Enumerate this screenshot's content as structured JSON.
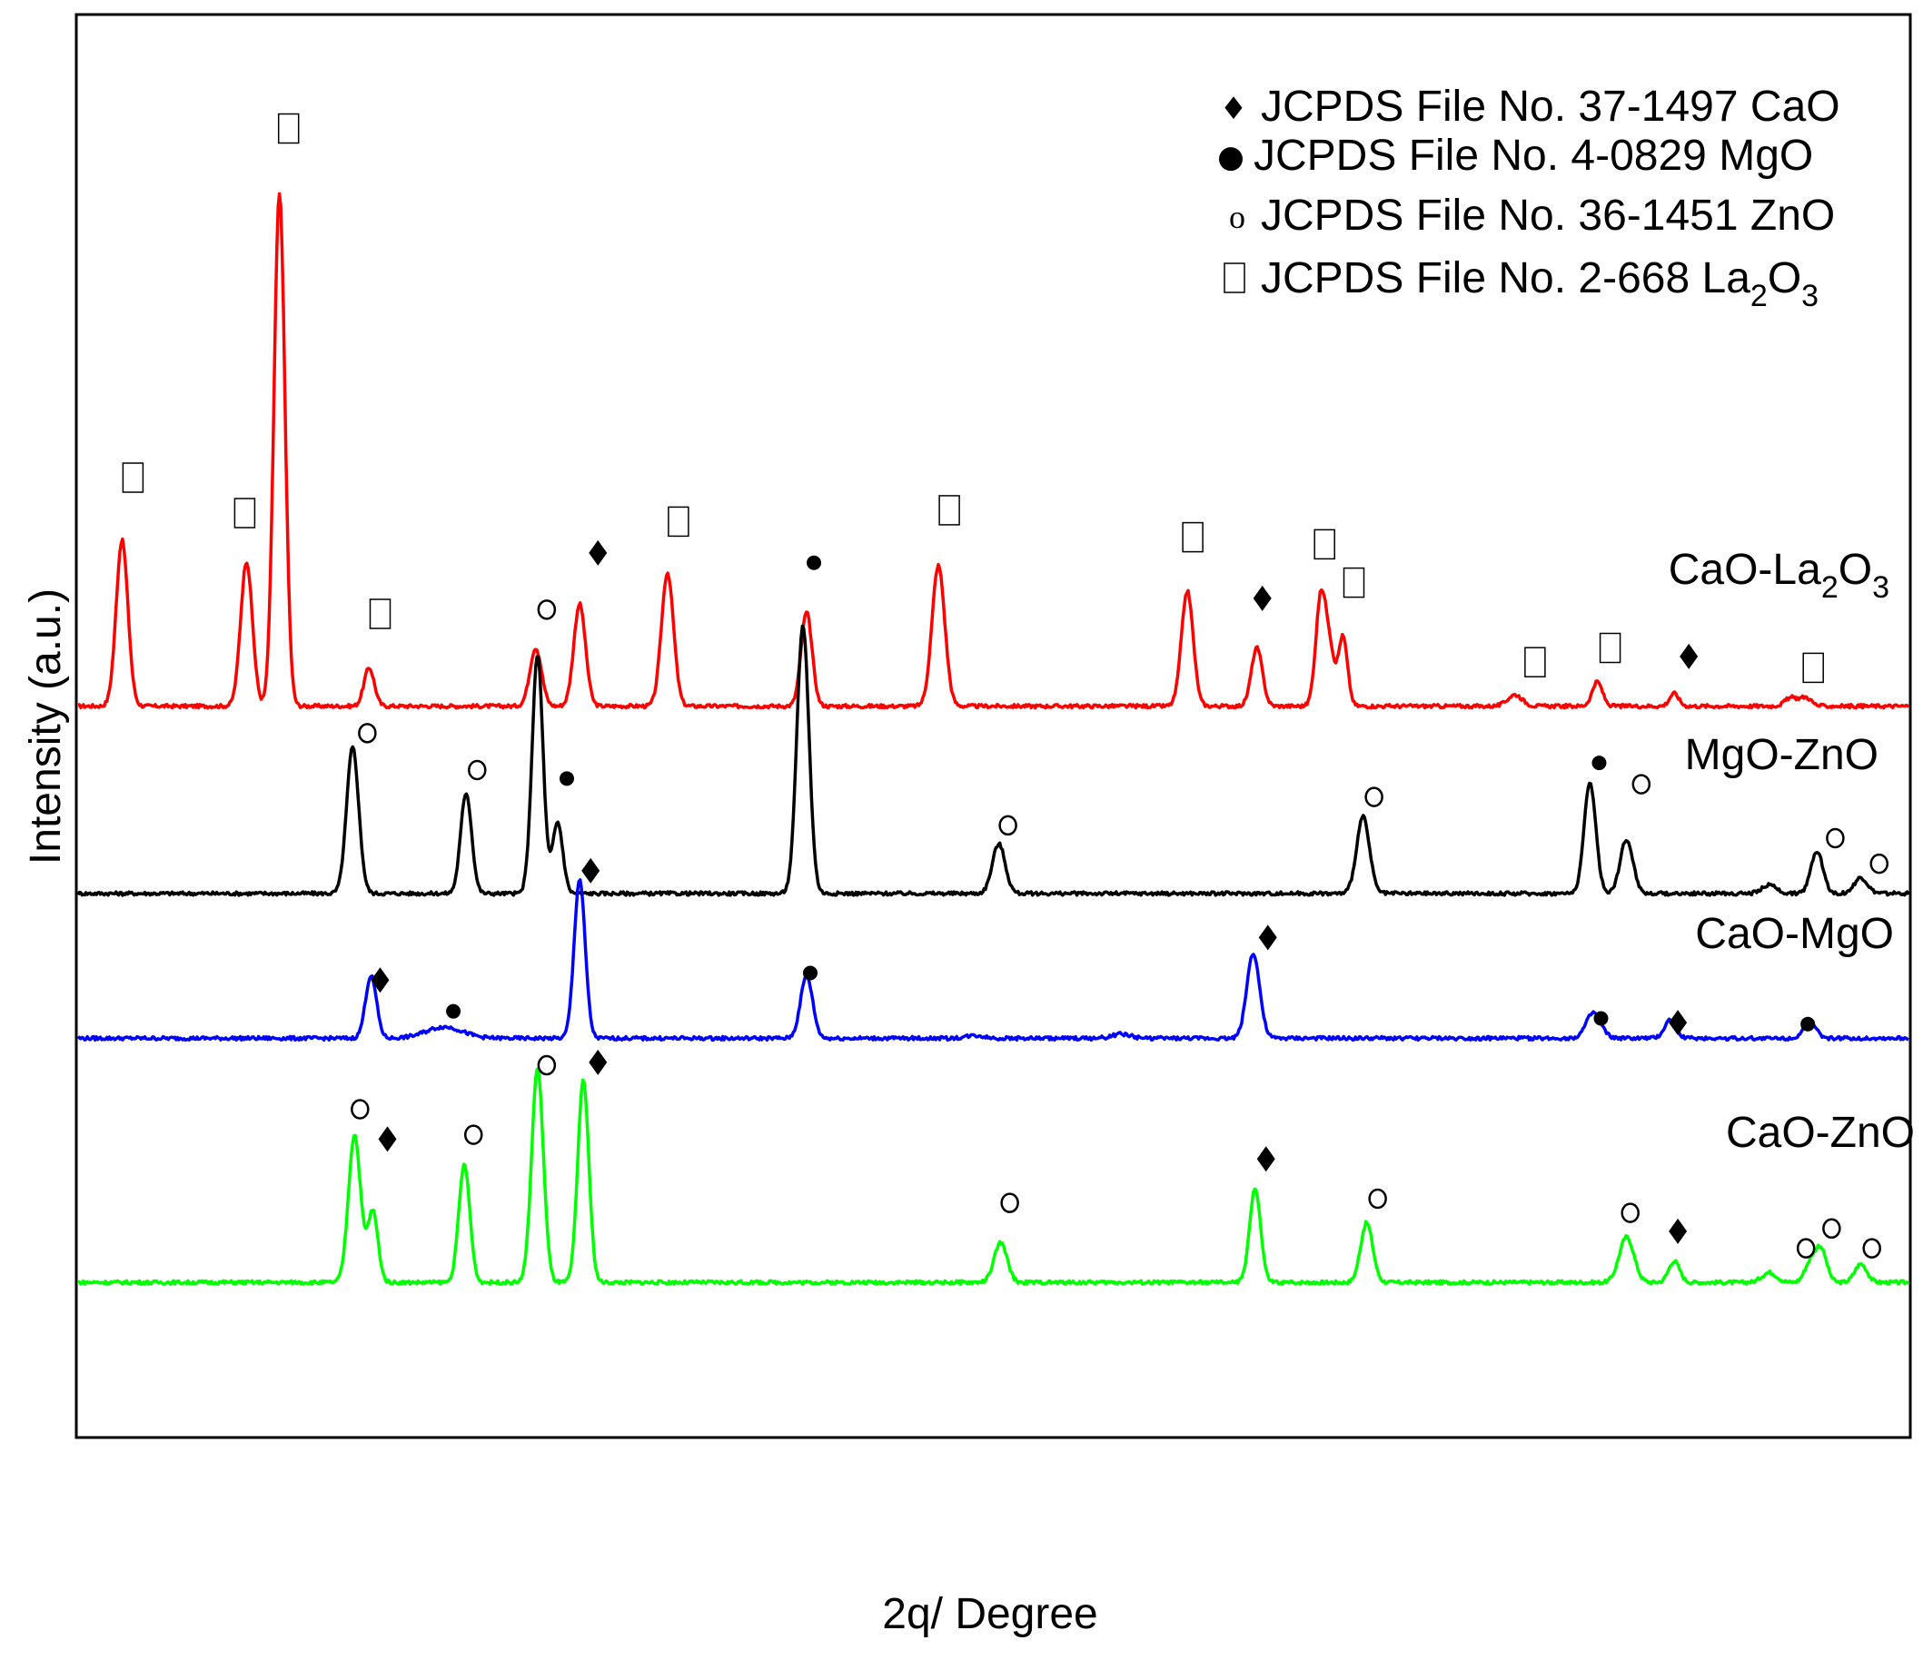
{
  "chart_data": {
    "type": "line",
    "title": "",
    "xlabel": "2q/ Degree",
    "ylabel": "Intensity (a.u.)",
    "xlim": [
      0,
      100
    ],
    "ylim": [
      0,
      100
    ],
    "grid": false,
    "axis_ticks": false,
    "legend_position": "top-right",
    "legend": [
      {
        "symbol": "diamond",
        "name": "JCPDS File No. 37-1497 CaO"
      },
      {
        "symbol": "dot",
        "name": "JCPDS File No. 4-0829 MgO"
      },
      {
        "symbol": "open-circle",
        "name": "JCPDS File No. 36-1451 ZnO"
      },
      {
        "symbol": "square",
        "name": "JCPDS File No. 2-668 La",
        "sub1": "2",
        "mid": "O",
        "sub2": "3"
      }
    ],
    "series": [
      {
        "name": "CaO-La2O3",
        "label_main": "CaO-La",
        "label_sub1": "2",
        "label_mid": "O",
        "label_sub2": "3",
        "color": "#ff0000",
        "baseline": 51.4,
        "peaks": [
          {
            "x": 2.4,
            "h": 11.7,
            "w": 0.32
          },
          {
            "x": 9.2,
            "h": 10.2,
            "w": 0.32
          },
          {
            "x": 11.0,
            "h": 36.1,
            "w": 0.3
          },
          {
            "x": 15.9,
            "h": 2.7,
            "w": 0.28
          },
          {
            "x": 25.0,
            "h": 4.1,
            "w": 0.32
          },
          {
            "x": 27.4,
            "h": 7.2,
            "w": 0.32
          },
          {
            "x": 32.2,
            "h": 9.4,
            "w": 0.33
          },
          {
            "x": 39.8,
            "h": 6.6,
            "w": 0.3
          },
          {
            "x": 47.0,
            "h": 9.9,
            "w": 0.35
          },
          {
            "x": 60.6,
            "h": 8.1,
            "w": 0.32
          },
          {
            "x": 64.4,
            "h": 4.1,
            "w": 0.3
          },
          {
            "x": 67.9,
            "h": 7.7,
            "w": 0.28
          },
          {
            "x": 68.4,
            "h": 3.4,
            "w": 0.25
          },
          {
            "x": 69.1,
            "h": 4.9,
            "w": 0.25
          },
          {
            "x": 78.5,
            "h": 0.8,
            "w": 0.4
          },
          {
            "x": 83.0,
            "h": 1.7,
            "w": 0.28
          },
          {
            "x": 87.2,
            "h": 0.9,
            "w": 0.25
          },
          {
            "x": 93.6,
            "h": 0.6,
            "w": 0.35
          },
          {
            "x": 94.4,
            "h": 0.6,
            "w": 0.3
          }
        ],
        "markers": [
          {
            "x": 3.0,
            "y": 67.5,
            "symbol": "square"
          },
          {
            "x": 9.1,
            "y": 65.0,
            "symbol": "square"
          },
          {
            "x": 11.5,
            "y": 92.1,
            "symbol": "square"
          },
          {
            "x": 16.5,
            "y": 57.9,
            "symbol": "square"
          },
          {
            "x": 25.6,
            "y": 58.2,
            "symbol": "open-circle"
          },
          {
            "x": 28.4,
            "y": 62.2,
            "symbol": "diamond"
          },
          {
            "x": 32.8,
            "y": 64.4,
            "symbol": "square"
          },
          {
            "x": 40.2,
            "y": 61.5,
            "symbol": "dot"
          },
          {
            "x": 47.6,
            "y": 65.2,
            "symbol": "square"
          },
          {
            "x": 60.9,
            "y": 63.3,
            "symbol": "square"
          },
          {
            "x": 64.7,
            "y": 59.0,
            "symbol": "diamond"
          },
          {
            "x": 68.1,
            "y": 62.8,
            "symbol": "square"
          },
          {
            "x": 69.7,
            "y": 60.1,
            "symbol": "square"
          },
          {
            "x": 79.6,
            "y": 54.5,
            "symbol": "square"
          },
          {
            "x": 83.7,
            "y": 55.5,
            "symbol": "square"
          },
          {
            "x": 88.0,
            "y": 54.9,
            "symbol": "diamond"
          },
          {
            "x": 94.8,
            "y": 54.1,
            "symbol": "square"
          }
        ]
      },
      {
        "name": "MgO-ZnO",
        "label_main": "MgO-ZnO",
        "color": "#000000",
        "baseline": 38.2,
        "peaks": [
          {
            "x": 15.0,
            "h": 10.3,
            "w": 0.33
          },
          {
            "x": 21.2,
            "h": 7.1,
            "w": 0.3
          },
          {
            "x": 25.1,
            "h": 16.8,
            "w": 0.3
          },
          {
            "x": 26.2,
            "h": 5.0,
            "w": 0.28
          },
          {
            "x": 39.6,
            "h": 18.9,
            "w": 0.33
          },
          {
            "x": 50.3,
            "h": 3.5,
            "w": 0.35
          },
          {
            "x": 70.2,
            "h": 5.4,
            "w": 0.35
          },
          {
            "x": 82.6,
            "h": 7.8,
            "w": 0.32
          },
          {
            "x": 84.6,
            "h": 3.8,
            "w": 0.35
          },
          {
            "x": 92.4,
            "h": 0.6,
            "w": 0.4
          },
          {
            "x": 95.0,
            "h": 3.0,
            "w": 0.33
          },
          {
            "x": 97.4,
            "h": 1.1,
            "w": 0.35
          }
        ],
        "markers": [
          {
            "x": 15.8,
            "y": 49.5,
            "symbol": "open-circle"
          },
          {
            "x": 21.8,
            "y": 46.9,
            "symbol": "open-circle"
          },
          {
            "x": 26.7,
            "y": 46.3,
            "symbol": "dot"
          },
          {
            "x": 50.8,
            "y": 43.0,
            "symbol": "open-circle"
          },
          {
            "x": 70.8,
            "y": 45.0,
            "symbol": "open-circle"
          },
          {
            "x": 83.1,
            "y": 47.4,
            "symbol": "dot"
          },
          {
            "x": 85.4,
            "y": 45.9,
            "symbol": "open-circle"
          },
          {
            "x": 96.0,
            "y": 42.1,
            "symbol": "open-circle"
          },
          {
            "x": 98.4,
            "y": 40.3,
            "symbol": "open-circle"
          }
        ]
      },
      {
        "name": "CaO-MgO",
        "label_main": "CaO-MgO",
        "color": "#0000ff",
        "baseline": 28.0,
        "peaks": [
          {
            "x": 16.0,
            "h": 4.4,
            "w": 0.3
          },
          {
            "x": 20.0,
            "h": 0.8,
            "w": 1.0
          },
          {
            "x": 27.4,
            "h": 11.2,
            "w": 0.3
          },
          {
            "x": 39.8,
            "h": 4.4,
            "w": 0.33
          },
          {
            "x": 49.0,
            "h": 0.2,
            "w": 0.5
          },
          {
            "x": 57.0,
            "h": 0.3,
            "w": 0.5
          },
          {
            "x": 64.2,
            "h": 6.0,
            "w": 0.35
          },
          {
            "x": 82.8,
            "h": 1.8,
            "w": 0.4
          },
          {
            "x": 87.0,
            "h": 1.3,
            "w": 0.32
          },
          {
            "x": 94.6,
            "h": 1.1,
            "w": 0.35
          }
        ],
        "markers": [
          {
            "x": 16.5,
            "y": 32.1,
            "symbol": "diamond"
          },
          {
            "x": 20.5,
            "y": 29.9,
            "symbol": "dot"
          },
          {
            "x": 28.0,
            "y": 39.8,
            "symbol": "diamond"
          },
          {
            "x": 40.0,
            "y": 32.6,
            "symbol": "dot"
          },
          {
            "x": 65.0,
            "y": 35.1,
            "symbol": "diamond"
          },
          {
            "x": 83.2,
            "y": 29.4,
            "symbol": "dot"
          },
          {
            "x": 87.4,
            "y": 29.1,
            "symbol": "diamond"
          },
          {
            "x": 94.5,
            "y": 29.0,
            "symbol": "dot"
          }
        ]
      },
      {
        "name": "CaO-ZnO",
        "label_main": "CaO-ZnO",
        "color": "#00ff00",
        "baseline": 10.8,
        "peaks": [
          {
            "x": 15.1,
            "h": 10.4,
            "w": 0.33
          },
          {
            "x": 16.1,
            "h": 5.0,
            "w": 0.28
          },
          {
            "x": 21.1,
            "h": 8.3,
            "w": 0.3
          },
          {
            "x": 25.1,
            "h": 15.1,
            "w": 0.32
          },
          {
            "x": 27.6,
            "h": 14.3,
            "w": 0.3
          },
          {
            "x": 50.4,
            "h": 2.8,
            "w": 0.35
          },
          {
            "x": 64.3,
            "h": 6.6,
            "w": 0.3
          },
          {
            "x": 70.4,
            "h": 4.2,
            "w": 0.33
          },
          {
            "x": 84.6,
            "h": 3.2,
            "w": 0.4
          },
          {
            "x": 87.2,
            "h": 1.5,
            "w": 0.3
          },
          {
            "x": 92.4,
            "h": 0.7,
            "w": 0.4
          },
          {
            "x": 94.6,
            "h": 1.2,
            "w": 0.3
          },
          {
            "x": 95.2,
            "h": 2.4,
            "w": 0.32
          },
          {
            "x": 97.4,
            "h": 1.3,
            "w": 0.33
          }
        ],
        "markers": [
          {
            "x": 15.4,
            "y": 23.0,
            "symbol": "open-circle"
          },
          {
            "x": 16.9,
            "y": 20.9,
            "symbol": "diamond"
          },
          {
            "x": 21.6,
            "y": 21.2,
            "symbol": "open-circle"
          },
          {
            "x": 25.6,
            "y": 26.1,
            "symbol": "open-circle"
          },
          {
            "x": 28.4,
            "y": 26.3,
            "symbol": "diamond"
          },
          {
            "x": 50.9,
            "y": 16.4,
            "symbol": "open-circle"
          },
          {
            "x": 64.9,
            "y": 19.5,
            "symbol": "diamond"
          },
          {
            "x": 71.0,
            "y": 16.7,
            "symbol": "open-circle"
          },
          {
            "x": 84.8,
            "y": 15.7,
            "symbol": "open-circle"
          },
          {
            "x": 87.4,
            "y": 14.4,
            "symbol": "diamond"
          },
          {
            "x": 94.4,
            "y": 13.2,
            "symbol": "open-circle"
          },
          {
            "x": 95.8,
            "y": 14.6,
            "symbol": "open-circle"
          },
          {
            "x": 98.0,
            "y": 13.2,
            "symbol": "open-circle"
          }
        ]
      }
    ]
  }
}
